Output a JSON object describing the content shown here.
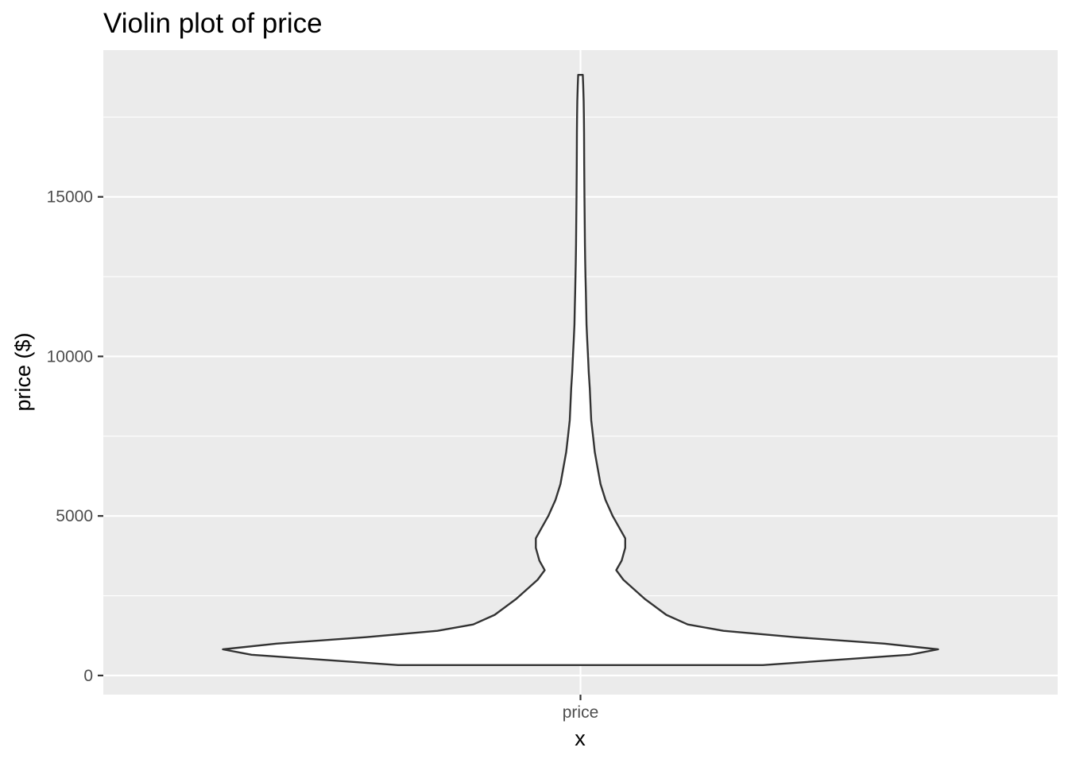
{
  "chart_data": {
    "type": "violin",
    "title": "Violin plot of price",
    "xlabel": "x",
    "ylabel": "price ($)",
    "categories": [
      "price"
    ],
    "y_ticks": [
      0,
      5000,
      10000,
      15000
    ],
    "y_tick_labels": [
      "0",
      "5000",
      "10000",
      "15000"
    ],
    "ylim": [
      -600,
      19600
    ],
    "grid": true,
    "legend": "none",
    "colors": {
      "panel": "#ebebeb",
      "grid": "#ffffff",
      "fill": "#ffffff",
      "outline": "#333333",
      "tick_text": "#4d4d4d"
    },
    "series": [
      {
        "category": "price",
        "range": [
          326,
          18823
        ],
        "density_profile": [
          [
            326,
            0.51
          ],
          [
            500,
            0.73
          ],
          [
            650,
            0.92
          ],
          [
            820,
            1.0
          ],
          [
            1000,
            0.85
          ],
          [
            1200,
            0.6
          ],
          [
            1400,
            0.4
          ],
          [
            1600,
            0.3
          ],
          [
            1900,
            0.24
          ],
          [
            2400,
            0.18
          ],
          [
            3000,
            0.12
          ],
          [
            3300,
            0.1
          ],
          [
            3600,
            0.115
          ],
          [
            4000,
            0.125
          ],
          [
            4300,
            0.125
          ],
          [
            4600,
            0.11
          ],
          [
            5000,
            0.09
          ],
          [
            5500,
            0.07
          ],
          [
            6000,
            0.056
          ],
          [
            6500,
            0.048
          ],
          [
            7000,
            0.04
          ],
          [
            7500,
            0.035
          ],
          [
            8000,
            0.03
          ],
          [
            8500,
            0.028
          ],
          [
            9000,
            0.026
          ],
          [
            9500,
            0.023
          ],
          [
            10000,
            0.021
          ],
          [
            10500,
            0.019
          ],
          [
            11000,
            0.017
          ],
          [
            11500,
            0.016
          ],
          [
            12000,
            0.015
          ],
          [
            12500,
            0.014
          ],
          [
            13000,
            0.013
          ],
          [
            13500,
            0.0125
          ],
          [
            14000,
            0.012
          ],
          [
            15000,
            0.011
          ],
          [
            16000,
            0.0105
          ],
          [
            17000,
            0.01
          ],
          [
            17500,
            0.0095
          ],
          [
            18000,
            0.009
          ],
          [
            18500,
            0.0075
          ],
          [
            18823,
            0.0065
          ]
        ]
      }
    ]
  }
}
